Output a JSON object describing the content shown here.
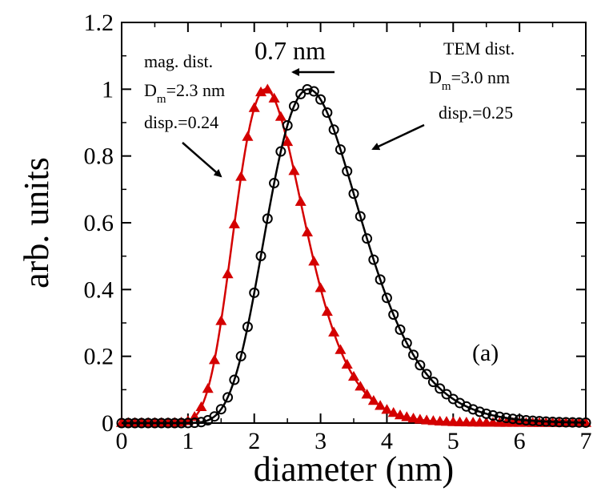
{
  "chart_data": {
    "type": "line",
    "xlabel": "diameter (nm)",
    "ylabel": "arb. units",
    "xlim": [
      0,
      7
    ],
    "ylim": [
      0,
      1.2
    ],
    "x_ticks": [
      "0",
      "1",
      "2",
      "3",
      "4",
      "5",
      "6",
      "7"
    ],
    "y_ticks": [
      "0",
      "0.2",
      "0.4",
      "0.6",
      "0.8",
      "1",
      "1.2"
    ],
    "x_tick_values": [
      0,
      1,
      2,
      3,
      4,
      5,
      6,
      7
    ],
    "y_tick_values": [
      0,
      0.2,
      0.4,
      0.6,
      0.8,
      1.0,
      1.2
    ],
    "grid": false,
    "series": [
      {
        "key": "mag",
        "color": "#d40000",
        "marker": "filled-triangle",
        "lognormal": {
          "median": 2.3,
          "sigma": 0.24
        },
        "x_range": [
          0,
          7
        ],
        "step": 0.1
      },
      {
        "key": "tem",
        "color": "#000000",
        "marker": "open-circle",
        "lognormal": {
          "median": 3.0,
          "sigma": 0.25
        },
        "x_range": [
          0,
          7
        ],
        "step": 0.1
      }
    ],
    "annotations": {
      "shift": "0.7 nm",
      "mag_label": "mag. dist.",
      "mag_dm_prefix": "D",
      "mag_dm_sub": "m",
      "mag_dm_value": "=2.3 nm",
      "mag_disp": "disp.=0.24",
      "tem_label": "TEM dist.",
      "tem_dm_prefix": "D",
      "tem_dm_sub": "m",
      "tem_dm_value": "=3.0 nm",
      "tem_disp": "disp.=0.25",
      "panel": "(a)"
    }
  }
}
